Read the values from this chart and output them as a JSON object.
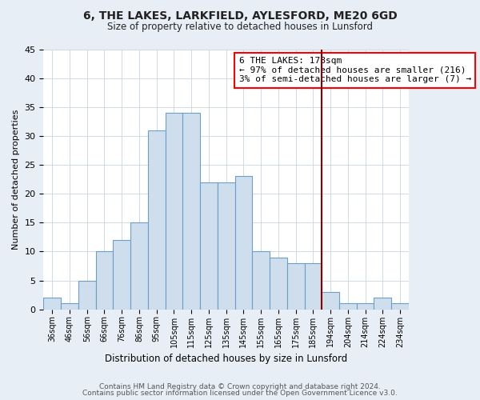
{
  "title": "6, THE LAKES, LARKFIELD, AYLESFORD, ME20 6GD",
  "subtitle": "Size of property relative to detached houses in Lunsford",
  "xlabel": "Distribution of detached houses by size in Lunsford",
  "ylabel": "Number of detached properties",
  "categories": [
    "36sqm",
    "46sqm",
    "56sqm",
    "66sqm",
    "76sqm",
    "86sqm",
    "95sqm",
    "105sqm",
    "115sqm",
    "125sqm",
    "135sqm",
    "145sqm",
    "155sqm",
    "165sqm",
    "175sqm",
    "185sqm",
    "194sqm",
    "204sqm",
    "214sqm",
    "224sqm",
    "234sqm"
  ],
  "values": [
    2,
    1,
    5,
    10,
    12,
    15,
    31,
    34,
    34,
    22,
    22,
    23,
    10,
    9,
    8,
    8,
    3,
    1,
    1,
    2,
    1
  ],
  "bar_color": "#cfdeed",
  "bar_edge_color": "#6b9ec8",
  "ylim": [
    0,
    45
  ],
  "yticks": [
    0,
    5,
    10,
    15,
    20,
    25,
    30,
    35,
    40,
    45
  ],
  "red_line_index": 15.5,
  "annotation_title": "6 THE LAKES: 178sqm",
  "annotation_line1": "← 97% of detached houses are smaller (216)",
  "annotation_line2": "3% of semi-detached houses are larger (7) →",
  "footer_line1": "Contains HM Land Registry data © Crown copyright and database right 2024.",
  "footer_line2": "Contains public sector information licensed under the Open Government Licence v3.0.",
  "fig_background_color": "#e8eef5",
  "plot_background_color": "#ffffff",
  "grid_color": "#c8d4e0"
}
